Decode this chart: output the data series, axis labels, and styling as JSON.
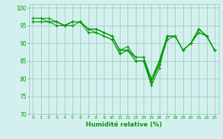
{
  "xlabel": "Humidité relative (%)",
  "xlim": [
    -0.5,
    23.5
  ],
  "ylim": [
    70,
    101
  ],
  "yticks": [
    70,
    75,
    80,
    85,
    90,
    95,
    100
  ],
  "xticks": [
    0,
    1,
    2,
    3,
    4,
    5,
    6,
    7,
    8,
    9,
    10,
    11,
    12,
    13,
    14,
    15,
    16,
    17,
    18,
    19,
    20,
    21,
    22,
    23
  ],
  "bg_color": "#d4f0ee",
  "grid_color": "#99ccbb",
  "line_color": "#009900",
  "series": [
    [
      96,
      96,
      96,
      96,
      95,
      96,
      96,
      94,
      93,
      92,
      91,
      87,
      88,
      85,
      85,
      78,
      83,
      92,
      92,
      88,
      90,
      94,
      92,
      88
    ],
    [
      96,
      96,
      96,
      96,
      95,
      96,
      96,
      93,
      93,
      92,
      91,
      87,
      88,
      85,
      85,
      79,
      84,
      92,
      92,
      88,
      90,
      94,
      92,
      88
    ],
    [
      96,
      96,
      96,
      95,
      95,
      95,
      96,
      94,
      94,
      93,
      92,
      88,
      89,
      86,
      86,
      80,
      85,
      92,
      92,
      88,
      90,
      94,
      92,
      88
    ],
    [
      97,
      97,
      97,
      96,
      95,
      96,
      96,
      94,
      94,
      93,
      92,
      88,
      88,
      86,
      86,
      79,
      84,
      91,
      92,
      88,
      90,
      93,
      92,
      88
    ],
    [
      97,
      97,
      96,
      96,
      95,
      96,
      96,
      94,
      94,
      93,
      92,
      88,
      88,
      86,
      86,
      79,
      85,
      92,
      92,
      88,
      90,
      93,
      92,
      88
    ]
  ]
}
